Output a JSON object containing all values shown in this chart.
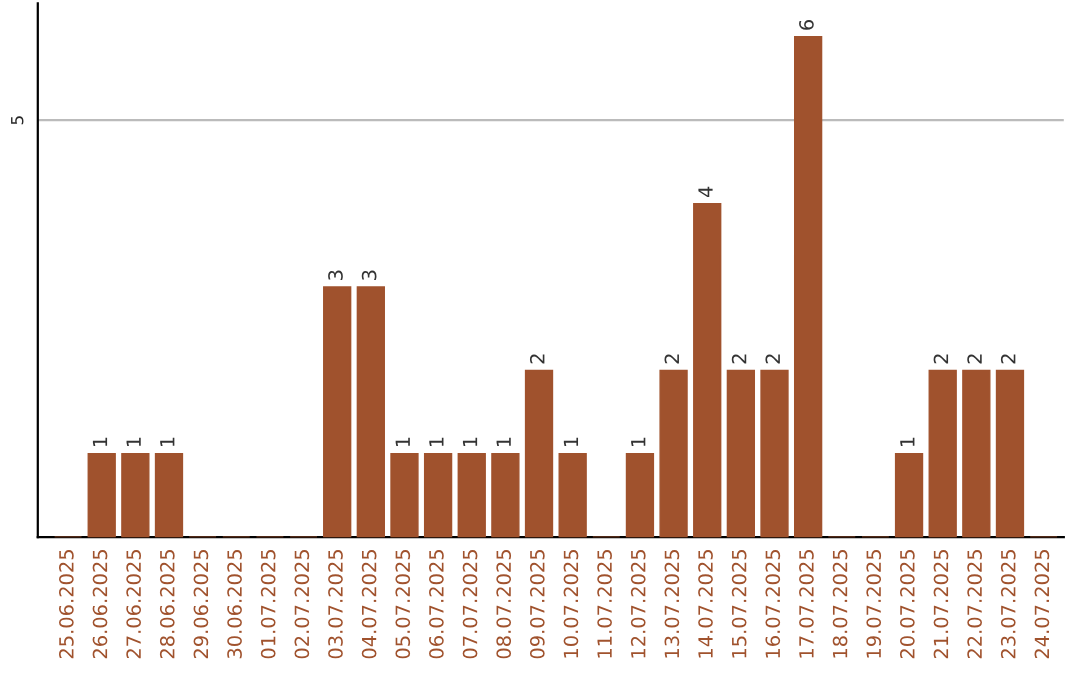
{
  "chart_data": {
    "type": "bar",
    "categories": [
      "25.06.2025",
      "26.06.2025",
      "27.06.2025",
      "28.06.2025",
      "29.06.2025",
      "30.06.2025",
      "01.07.2025",
      "02.07.2025",
      "03.07.2025",
      "04.07.2025",
      "05.07.2025",
      "06.07.2025",
      "07.07.2025",
      "08.07.2025",
      "09.07.2025",
      "10.07.2025",
      "11.07.2025",
      "12.07.2025",
      "13.07.2025",
      "14.07.2025",
      "15.07.2025",
      "16.07.2025",
      "17.07.2025",
      "18.07.2025",
      "19.07.2025",
      "20.07.2025",
      "21.07.2025",
      "22.07.2025",
      "23.07.2025",
      "24.07.2025"
    ],
    "values": [
      0,
      1,
      1,
      1,
      0,
      0,
      0,
      0,
      3,
      3,
      1,
      1,
      1,
      1,
      2,
      1,
      0,
      1,
      2,
      4,
      2,
      2,
      6,
      0,
      0,
      1,
      2,
      2,
      2,
      0
    ],
    "value_labels": [
      null,
      "1",
      "1",
      "1",
      null,
      null,
      null,
      null,
      "3",
      "3",
      "1",
      "1",
      "1",
      "1",
      "2",
      "1",
      null,
      "1",
      "2",
      "4",
      "2",
      "2",
      "6",
      null,
      null,
      "1",
      "2",
      "2",
      "2",
      null
    ],
    "color": "#a0522d",
    "ylim": [
      0,
      6.4
    ],
    "yticks": [
      5
    ],
    "grid": "y"
  }
}
